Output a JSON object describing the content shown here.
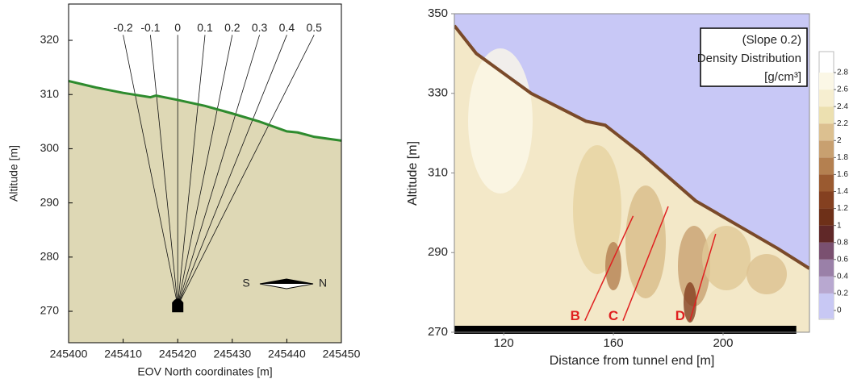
{
  "chart_data": [
    {
      "type": "terrain",
      "xlabel": "EOV North coordinates [m]",
      "ylabel": "Altitude [m]",
      "x": [
        245400,
        245405,
        245410,
        245415,
        245416,
        245420,
        245425,
        245430,
        245435,
        245440,
        245442,
        245445,
        245450
      ],
      "series": [
        {
          "color": "#2e8b2e",
          "values": [
            312.5,
            311.3,
            310.3,
            309.5,
            309.8,
            309,
            307.9,
            306.5,
            305,
            303.2,
            303,
            302.2,
            301.5
          ]
        }
      ],
      "fill_color": "#ded8b5",
      "xlim": [
        245400,
        245450
      ],
      "ylim": [
        264.2,
        326.7
      ],
      "xticks": [
        245400,
        245410,
        245420,
        245430,
        245440,
        245450
      ],
      "yticks": [
        270,
        280,
        290,
        300,
        310,
        320
      ],
      "rays": [
        -0.2,
        -0.1,
        0,
        0.1,
        0.2,
        0.3,
        0.4,
        0.5
      ],
      "tunnel": {
        "x": 245420,
        "y": 271
      },
      "compass": {
        "south": "S",
        "north": "N"
      }
    },
    {
      "type": "density-map",
      "xlabel": "Distance from tunnel end [m]",
      "ylabel": "Altitude [m]",
      "xlim": [
        102,
        231.5
      ],
      "ylim": [
        270,
        350
      ],
      "xticks": [
        120,
        160,
        200
      ],
      "yticks": [
        270,
        290,
        310,
        330,
        350
      ],
      "surface": {
        "x": [
          102,
          110,
          130,
          150,
          157,
          170,
          190,
          210,
          220,
          231.5
        ],
        "values": [
          347,
          340,
          330,
          323,
          322,
          315,
          303,
          295,
          291,
          286
        ],
        "color": "#7a4a2a"
      },
      "sky_color": "#c8c8f6",
      "ground_color": "#f3e8c8",
      "legend_text": [
        "(Slope 0.2)",
        "Density Distribution",
        "[g/cm³]"
      ],
      "colorbar": {
        "ticks": [
          0,
          0.2,
          0.4,
          0.6,
          0.8,
          1,
          1.2,
          1.4,
          1.6,
          1.8,
          2,
          2.2,
          2.4,
          2.6,
          2.8
        ],
        "colors": [
          "#c8c8f4",
          "#b8a8d0",
          "#9a80a8",
          "#7a5070",
          "#602828",
          "#6e3018",
          "#844020",
          "#9a5a30",
          "#b48050",
          "#c8a070",
          "#dcc090",
          "#ece0b0",
          "#f6eed0",
          "#fbf7e6"
        ]
      },
      "faults": [
        {
          "label": "B",
          "x": [
            149.6,
            167.2
          ],
          "y": [
            272.9,
            299.2
          ]
        },
        {
          "label": "C",
          "x": [
            163.5,
            180
          ],
          "y": [
            272.9,
            301.6
          ]
        },
        {
          "label": "D",
          "x": [
            187.9,
            197.3
          ],
          "y": [
            272.9,
            294.7
          ]
        }
      ],
      "fault_color": "#e02020",
      "tunnel_bar": {
        "x": [
          102,
          226.7
        ]
      }
    }
  ]
}
